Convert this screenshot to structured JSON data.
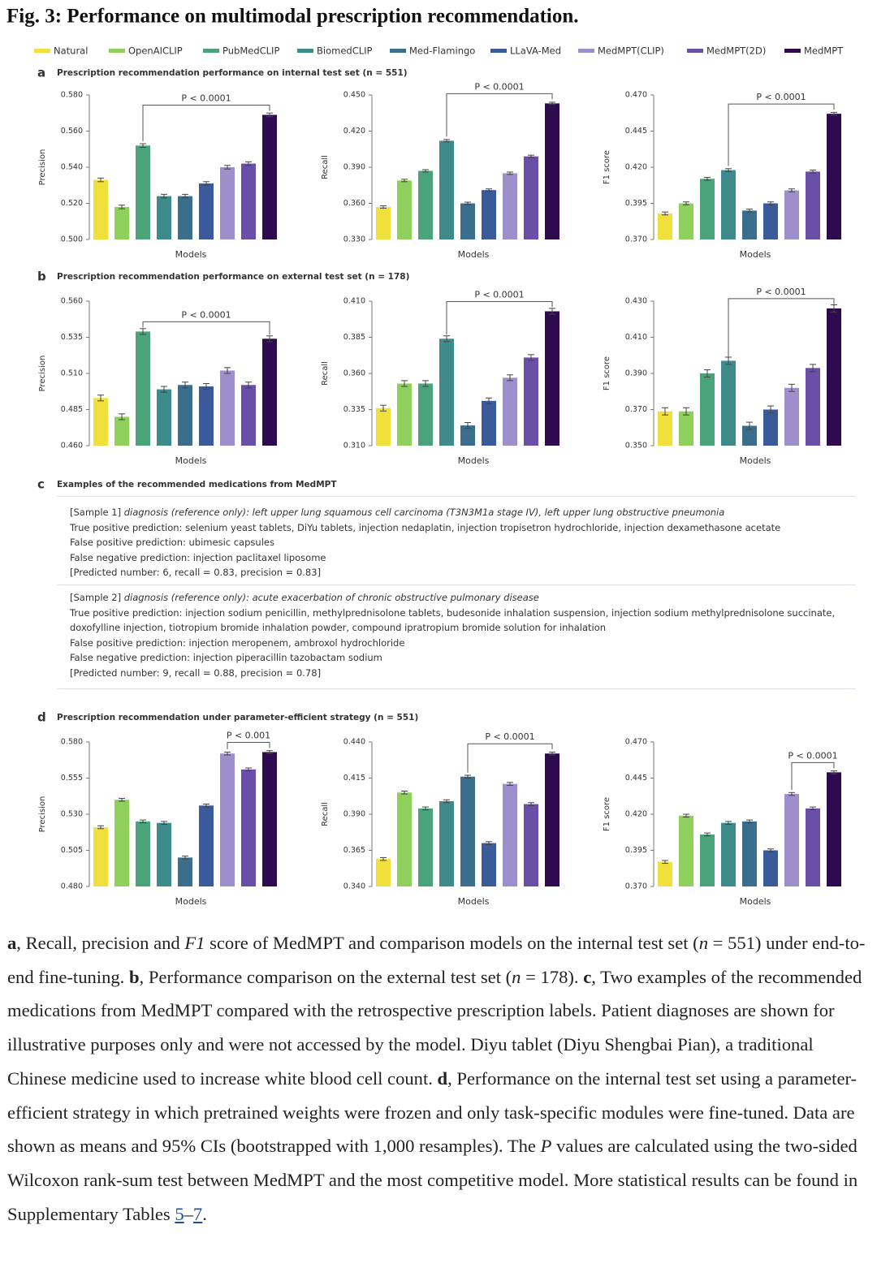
{
  "title": "Fig. 3: Performance on multimodal prescription recommendation.",
  "legend": [
    {
      "name": "Natural",
      "color": "#f0e03c"
    },
    {
      "name": "OpenAICLIP",
      "color": "#8fcf5c"
    },
    {
      "name": "PubMedCLIP",
      "color": "#4ba37b"
    },
    {
      "name": "BiomedCLIP",
      "color": "#3f8a8a"
    },
    {
      "name": "Med-Flamingo",
      "color": "#3b6d8c"
    },
    {
      "name": "LLaVA-Med",
      "color": "#3a5a9a"
    },
    {
      "name": "MedMPT(CLIP)",
      "color": "#9d8fcc"
    },
    {
      "name": "MedMPT(2D)",
      "color": "#6a4fa8"
    },
    {
      "name": "MedMPT",
      "color": "#2d0b4e"
    }
  ],
  "panels": [
    {
      "label": "a",
      "title": "Prescription recommendation performance on internal test set (n = 551)"
    },
    {
      "label": "b",
      "title": "Prescription recommendation performance on external test set (n = 178)"
    },
    {
      "label": "c",
      "title": "Examples of the recommended medications from MedMPT"
    },
    {
      "label": "d",
      "title": "Prescription recommendation under parameter-efficient strategy (n = 551)"
    }
  ],
  "chart_data": [
    {
      "type": "bar",
      "ylabel": "Precision",
      "xlabel": "Models",
      "values": [
        0.533,
        0.518,
        0.552,
        0.524,
        0.524,
        0.531,
        0.54,
        0.542,
        0.569
      ],
      "errors": [
        0.001,
        0.001,
        0.001,
        0.001,
        0.001,
        0.001,
        0.001,
        0.001,
        0.001
      ],
      "ylim": [
        0.5,
        0.58
      ],
      "yticks": [
        {
          "value": 0.5,
          "label": "0.500"
        },
        {
          "value": 0.52,
          "label": "0.520"
        },
        {
          "value": 0.54,
          "label": "0.540"
        },
        {
          "value": 0.56,
          "label": "0.560"
        },
        {
          "value": 0.58,
          "label": "0.580"
        }
      ],
      "annotation": {
        "text": "P < 0.0001",
        "from": 2,
        "to": 8
      }
    },
    {
      "type": "bar",
      "ylabel": "Recall",
      "xlabel": "Models",
      "values": [
        0.357,
        0.379,
        0.387,
        0.412,
        0.36,
        0.371,
        0.385,
        0.399,
        0.443
      ],
      "errors": [
        0.001,
        0.001,
        0.001,
        0.001,
        0.001,
        0.001,
        0.001,
        0.001,
        0.001
      ],
      "ylim": [
        0.33,
        0.45
      ],
      "yticks": [
        {
          "value": 0.33,
          "label": "0.330"
        },
        {
          "value": 0.36,
          "label": "0.360"
        },
        {
          "value": 0.39,
          "label": "0.390"
        },
        {
          "value": 0.42,
          "label": "0.420"
        },
        {
          "value": 0.45,
          "label": "0.450"
        }
      ],
      "annotation": {
        "text": "P < 0.0001",
        "from": 3,
        "to": 8
      }
    },
    {
      "type": "bar",
      "ylabel": "F1 score",
      "xlabel": "Models",
      "values": [
        0.388,
        0.395,
        0.412,
        0.418,
        0.39,
        0.395,
        0.404,
        0.417,
        0.457
      ],
      "errors": [
        0.001,
        0.001,
        0.001,
        0.001,
        0.001,
        0.001,
        0.001,
        0.001,
        0.001
      ],
      "ylim": [
        0.37,
        0.47
      ],
      "yticks": [
        {
          "value": 0.37,
          "label": "0.370"
        },
        {
          "value": 0.395,
          "label": "0.395"
        },
        {
          "value": 0.42,
          "label": "0.420"
        },
        {
          "value": 0.445,
          "label": "0.445"
        },
        {
          "value": 0.47,
          "label": "0.470"
        }
      ],
      "annotation": {
        "text": "P < 0.0001",
        "from": 3,
        "to": 8
      }
    },
    {
      "type": "bar",
      "ylabel": "Precision",
      "xlabel": "Models",
      "values": [
        0.493,
        0.48,
        0.539,
        0.499,
        0.502,
        0.501,
        0.512,
        0.502,
        0.534
      ],
      "errors": [
        0.002,
        0.002,
        0.002,
        0.002,
        0.002,
        0.002,
        0.002,
        0.002,
        0.002
      ],
      "ylim": [
        0.46,
        0.56
      ],
      "yticks": [
        {
          "value": 0.46,
          "label": "0.460"
        },
        {
          "value": 0.485,
          "label": "0.485"
        },
        {
          "value": 0.51,
          "label": "0.510"
        },
        {
          "value": 0.535,
          "label": "0.535"
        },
        {
          "value": 0.56,
          "label": "0.560"
        }
      ],
      "annotation": {
        "text": "P < 0.0001",
        "from": 2,
        "to": 8
      }
    },
    {
      "type": "bar",
      "ylabel": "Recall",
      "xlabel": "Models",
      "values": [
        0.336,
        0.353,
        0.353,
        0.384,
        0.324,
        0.341,
        0.357,
        0.371,
        0.403
      ],
      "errors": [
        0.002,
        0.002,
        0.002,
        0.002,
        0.002,
        0.002,
        0.002,
        0.002,
        0.002
      ],
      "ylim": [
        0.31,
        0.41
      ],
      "yticks": [
        {
          "value": 0.31,
          "label": "0.310"
        },
        {
          "value": 0.335,
          "label": "0.335"
        },
        {
          "value": 0.36,
          "label": "0.360"
        },
        {
          "value": 0.385,
          "label": "0.385"
        },
        {
          "value": 0.41,
          "label": "0.410"
        }
      ],
      "annotation": {
        "text": "P < 0.0001",
        "from": 3,
        "to": 8
      }
    },
    {
      "type": "bar",
      "ylabel": "F1 score",
      "xlabel": "Models",
      "values": [
        0.369,
        0.369,
        0.39,
        0.397,
        0.361,
        0.37,
        0.382,
        0.393,
        0.426
      ],
      "errors": [
        0.002,
        0.002,
        0.002,
        0.002,
        0.002,
        0.002,
        0.002,
        0.002,
        0.002
      ],
      "ylim": [
        0.35,
        0.43
      ],
      "yticks": [
        {
          "value": 0.35,
          "label": "0.350"
        },
        {
          "value": 0.37,
          "label": "0.370"
        },
        {
          "value": 0.39,
          "label": "0.390"
        },
        {
          "value": 0.41,
          "label": "0.410"
        },
        {
          "value": 0.43,
          "label": "0.430"
        }
      ],
      "annotation": {
        "text": "P < 0.0001",
        "from": 3,
        "to": 8
      }
    },
    {
      "type": "bar",
      "ylabel": "Precision",
      "xlabel": "Models",
      "values": [
        0.521,
        0.54,
        0.525,
        0.524,
        0.5,
        0.536,
        0.572,
        0.561,
        0.573
      ],
      "errors": [
        0.001,
        0.001,
        0.001,
        0.001,
        0.001,
        0.001,
        0.001,
        0.001,
        0.001
      ],
      "ylim": [
        0.48,
        0.58
      ],
      "yticks": [
        {
          "value": 0.48,
          "label": "0.480"
        },
        {
          "value": 0.505,
          "label": "0.505"
        },
        {
          "value": 0.53,
          "label": "0.530"
        },
        {
          "value": 0.555,
          "label": "0.555"
        },
        {
          "value": 0.58,
          "label": "0.580"
        }
      ],
      "annotation": {
        "text": "P < 0.001",
        "from": 6,
        "to": 8
      }
    },
    {
      "type": "bar",
      "ylabel": "Recall",
      "xlabel": "Models",
      "values": [
        0.359,
        0.405,
        0.394,
        0.399,
        0.416,
        0.37,
        0.411,
        0.397,
        0.432
      ],
      "errors": [
        0.001,
        0.001,
        0.001,
        0.001,
        0.001,
        0.001,
        0.001,
        0.001,
        0.001
      ],
      "ylim": [
        0.34,
        0.44
      ],
      "yticks": [
        {
          "value": 0.34,
          "label": "0.340"
        },
        {
          "value": 0.365,
          "label": "0.365"
        },
        {
          "value": 0.39,
          "label": "0.390"
        },
        {
          "value": 0.415,
          "label": "0.415"
        },
        {
          "value": 0.44,
          "label": "0.440"
        }
      ],
      "annotation": {
        "text": "P < 0.0001",
        "from": 4,
        "to": 8
      }
    },
    {
      "type": "bar",
      "ylabel": "F1 score",
      "xlabel": "Models",
      "values": [
        0.387,
        0.419,
        0.406,
        0.414,
        0.415,
        0.395,
        0.434,
        0.424,
        0.449
      ],
      "errors": [
        0.001,
        0.001,
        0.001,
        0.001,
        0.001,
        0.001,
        0.001,
        0.001,
        0.001
      ],
      "ylim": [
        0.37,
        0.47
      ],
      "yticks": [
        {
          "value": 0.37,
          "label": "0.370"
        },
        {
          "value": 0.395,
          "label": "0.395"
        },
        {
          "value": 0.42,
          "label": "0.420"
        },
        {
          "value": 0.445,
          "label": "0.445"
        },
        {
          "value": 0.47,
          "label": "0.470"
        }
      ],
      "annotation": {
        "text": "P < 0.0001",
        "from": 6,
        "to": 8
      }
    }
  ],
  "examples": [
    {
      "head": "[Sample 1]",
      "diagnosis": "diagnosis (reference only): left upper lung squamous cell carcinoma (T3N3M1a stage IV), left upper lung obstructive pneumonia",
      "lines": [
        "True positive prediction: selenium yeast tablets, DiYu tablets, injection nedaplatin, injection tropisetron hydrochloride, injection dexamethasone acetate",
        "False positive prediction: ubimesic capsules",
        "False negative prediction: injection paclitaxel liposome",
        "[Predicted number: 6, recall = 0.83, precision = 0.83]"
      ]
    },
    {
      "head": "[Sample 2]",
      "diagnosis": "diagnosis (reference only): acute exacerbation of chronic obstructive pulmonary disease",
      "lines": [
        "True positive prediction: injection sodium penicillin, methylprednisolone tablets, budesonide inhalation suspension, injection sodium methylprednisolone succinate, doxofylline injection, tiotropium bromide inhalation powder, compound ipratropium bromide solution for inhalation",
        "False positive prediction: injection meropenem, ambroxol hydrochloride",
        "False negative prediction: injection piperacillin tazobactam sodium",
        "[Predicted number: 9, recall = 0.88, precision = 0.78]"
      ]
    }
  ],
  "caption": [
    {
      "text": "a",
      "style": "bold"
    },
    {
      "text": ", Recall, precision and ",
      "style": "plain"
    },
    {
      "text": "F1",
      "style": "italic"
    },
    {
      "text": " score of MedMPT and comparison models on the internal test set (",
      "style": "plain"
    },
    {
      "text": "n",
      "style": "italic"
    },
    {
      "text": " = 551) under end-to-end fine-tuning. ",
      "style": "plain"
    },
    {
      "text": "b",
      "style": "bold"
    },
    {
      "text": ", Performance comparison on the external test set (",
      "style": "plain"
    },
    {
      "text": "n",
      "style": "italic"
    },
    {
      "text": " = 178). ",
      "style": "plain"
    },
    {
      "text": "c",
      "style": "bold"
    },
    {
      "text": ", Two examples of the recommended medications from MedMPT compared with the retrospective prescription labels. Patient diagnoses are shown for illustrative purposes only and were not accessed by the model. Diyu tablet (Diyu Shengbai Pian), a traditional Chinese medicine used to increase white blood cell count. ",
      "style": "plain"
    },
    {
      "text": "d",
      "style": "bold"
    },
    {
      "text": ", Performance on the internal test set using a parameter-efficient strategy in which pretrained weights were frozen and only task-specific modules were fine-tuned. Data are shown as means and 95% CIs (bootstrapped with 1,000 resamples). The ",
      "style": "plain"
    },
    {
      "text": "P",
      "style": "italic"
    },
    {
      "text": " values are calculated using the two-sided Wilcoxon rank-sum test between MedMPT and the most competitive model. More statistical results can be found in Supplementary Tables ",
      "style": "plain"
    },
    {
      "text": "5",
      "style": "link"
    },
    {
      "text": "–",
      "style": "plain"
    },
    {
      "text": "7",
      "style": "link"
    },
    {
      "text": ".",
      "style": "plain"
    }
  ]
}
